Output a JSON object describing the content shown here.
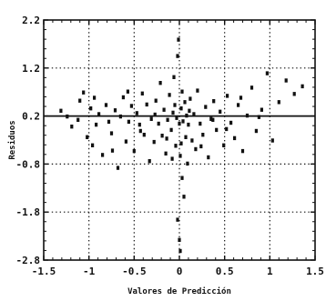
{
  "chart_data": {
    "type": "scatter",
    "title": "",
    "xlabel": "Valores de Predicción",
    "ylabel": "Residuos",
    "xlim": [
      -1.5,
      1.5
    ],
    "ylim": [
      -2.8,
      2.2
    ],
    "x_ticks": [
      -1.5,
      -1,
      -0.5,
      0,
      0.5,
      1,
      1.5
    ],
    "x_tick_labels": [
      "-1.5",
      "-1",
      "-0.5",
      "0",
      "0.5",
      "1",
      "1.5"
    ],
    "y_ticks": [
      -2.8,
      -1.8,
      -0.8,
      0.2,
      1.2,
      2.2
    ],
    "y_tick_labels": [
      "-2.8",
      "-1.8",
      "-0.8",
      "0.2",
      "1.2",
      "2.2"
    ],
    "grid": "dotted",
    "reference_line_y": 0.2,
    "series": [
      {
        "points": [
          [
            -1.31,
            0.31
          ],
          [
            -1.19,
            -0.02
          ],
          [
            -1.12,
            0.12
          ],
          [
            -1.1,
            0.52
          ],
          [
            -1.06,
            0.69
          ],
          [
            -1.02,
            -0.24
          ],
          [
            -0.98,
            0.36
          ],
          [
            -0.96,
            -0.41
          ],
          [
            -0.92,
            0.02
          ],
          [
            -0.89,
            0.24
          ],
          [
            -0.85,
            -0.61
          ],
          [
            -0.81,
            0.43
          ],
          [
            -0.78,
            0.08
          ],
          [
            -0.75,
            -0.16
          ],
          [
            -0.71,
            0.32
          ],
          [
            -0.68,
            -0.88
          ],
          [
            -0.65,
            0.19
          ],
          [
            -0.62,
            0.59
          ],
          [
            -0.59,
            -0.33
          ],
          [
            -0.56,
            0.08
          ],
          [
            -0.53,
            0.41
          ],
          [
            -0.5,
            -0.53
          ],
          [
            -0.47,
            0.26
          ],
          [
            -0.44,
            0.02
          ],
          [
            -0.41,
            0.67
          ],
          [
            -0.39,
            -0.19
          ],
          [
            -0.36,
            0.44
          ],
          [
            -0.33,
            -0.74
          ],
          [
            -0.31,
            0.14
          ],
          [
            -0.28,
            -0.34
          ],
          [
            -0.26,
            0.52
          ],
          [
            -0.23,
            0.04
          ],
          [
            -0.21,
            0.89
          ],
          [
            -0.19,
            -0.21
          ],
          [
            -0.17,
            0.33
          ],
          [
            -0.15,
            -0.58
          ],
          [
            -0.13,
            0.12
          ],
          [
            -0.11,
            0.64
          ],
          [
            -0.09,
            -0.09
          ],
          [
            -0.07,
            0.27
          ],
          [
            -0.06,
            1.01
          ],
          [
            -0.04,
            -0.42
          ],
          [
            -0.03,
            0.16
          ],
          [
            -0.02,
            1.45
          ],
          [
            -0.01,
            1.79
          ],
          [
            0.0,
            0.04
          ],
          [
            0.01,
            -0.63
          ],
          [
            0.02,
            0.36
          ],
          [
            0.03,
            -1.09
          ],
          [
            0.04,
            0.09
          ],
          [
            0.05,
            -1.48
          ],
          [
            0.06,
            0.49
          ],
          [
            0.07,
            -0.24
          ],
          [
            0.08,
            0.21
          ],
          [
            0.09,
            -0.79
          ],
          [
            0.1,
            0.02
          ],
          [
            0.12,
            0.56
          ],
          [
            0.14,
            -0.31
          ],
          [
            0.16,
            0.24
          ],
          [
            0.18,
            -0.49
          ],
          [
            0.2,
            0.73
          ],
          [
            0.23,
            0.04
          ],
          [
            0.26,
            -0.19
          ],
          [
            0.29,
            0.39
          ],
          [
            0.32,
            -0.66
          ],
          [
            0.35,
            0.14
          ],
          [
            0.38,
            0.51
          ],
          [
            0.41,
            -0.09
          ],
          [
            0.45,
            0.29
          ],
          [
            0.49,
            -0.41
          ],
          [
            0.53,
            0.62
          ],
          [
            0.57,
            0.06
          ],
          [
            0.61,
            -0.26
          ],
          [
            0.65,
            0.43
          ],
          [
            0.7,
            -0.53
          ],
          [
            0.75,
            0.21
          ],
          [
            0.8,
            0.79
          ],
          [
            0.85,
            -0.11
          ],
          [
            0.91,
            0.33
          ],
          [
            0.97,
            1.09
          ],
          [
            1.03,
            -0.31
          ],
          [
            1.1,
            0.49
          ],
          [
            1.18,
            0.94
          ],
          [
            1.27,
            0.66
          ],
          [
            1.36,
            0.82
          ],
          [
            -1.24,
            0.19
          ],
          [
            -0.94,
            0.58
          ],
          [
            -0.74,
            -0.52
          ],
          [
            -0.57,
            0.71
          ],
          [
            -0.43,
            -0.11
          ],
          [
            -0.27,
            0.23
          ],
          [
            -0.14,
            -0.27
          ],
          [
            -0.05,
            0.43
          ],
          [
            0.02,
            -0.37
          ],
          [
            0.11,
            0.31
          ],
          [
            0.24,
            -0.43
          ],
          [
            0.37,
            0.12
          ],
          [
            0.52,
            -0.07
          ],
          [
            0.68,
            0.58
          ],
          [
            0.88,
            0.18
          ],
          [
            -0.02,
            -1.96
          ],
          [
            0.0,
            -2.38
          ],
          [
            0.01,
            -2.61
          ],
          [
            0.03,
            0.71
          ],
          [
            -0.08,
            -0.69
          ]
        ]
      }
    ]
  }
}
